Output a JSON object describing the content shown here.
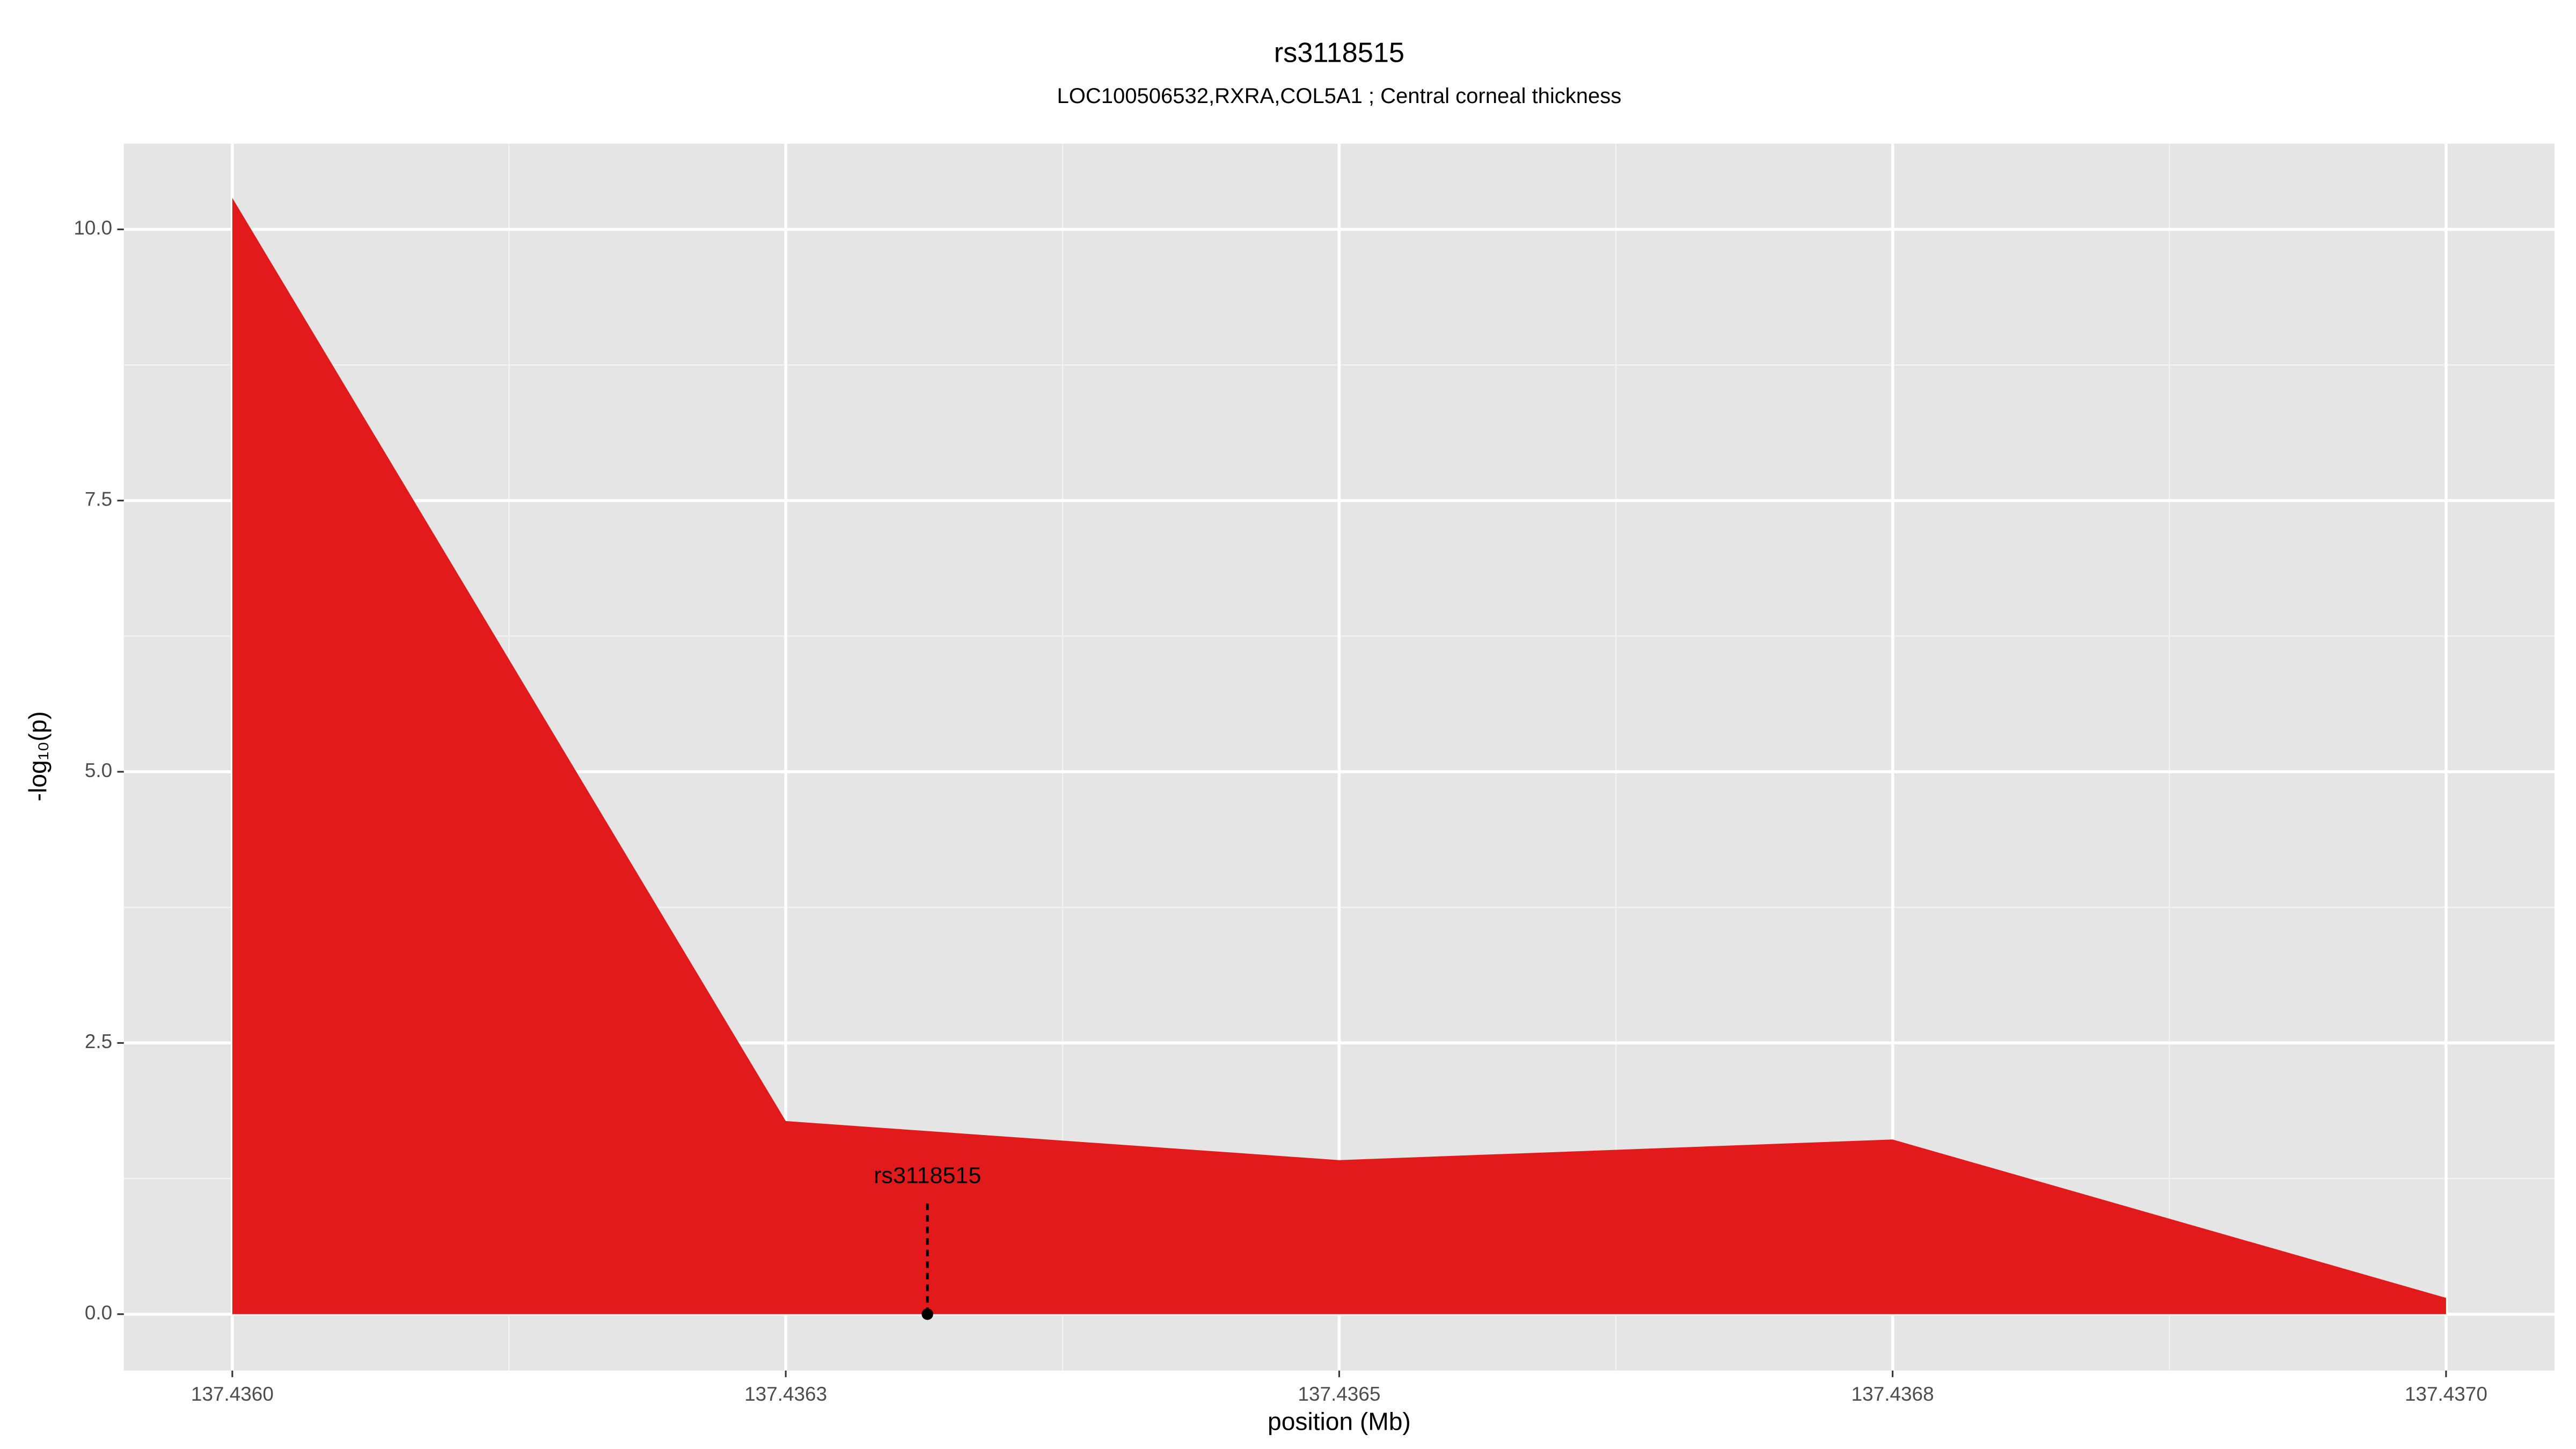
{
  "chart_data": {
    "type": "area",
    "title": "rs3118515",
    "subtitle": "LOC100506532,RXRA,COL5A1 ; Central corneal thickness",
    "xlabel": "position (Mb)",
    "ylabel": "-log₁₀(p)",
    "x": [
      137.436,
      137.43625,
      137.4365,
      137.43675,
      137.437
    ],
    "series": [
      {
        "values": [
          10.29,
          1.78,
          1.42,
          1.61,
          0.15
        ],
        "color": "#e31a1c"
      }
    ],
    "xlim": [
      137.435951,
      137.437049
    ],
    "ylim": [
      -0.52,
      10.79
    ],
    "xticks": [
      {
        "value": 137.436,
        "label": "137.4360"
      },
      {
        "value": 137.43625,
        "label": "137.4363"
      },
      {
        "value": 137.4365,
        "label": "137.4365"
      },
      {
        "value": 137.43675,
        "label": "137.4368"
      },
      {
        "value": 137.437,
        "label": "137.4370"
      }
    ],
    "yticks": [
      {
        "value": 0,
        "label": "0.0"
      },
      2.5,
      {
        "value": 5,
        "label": "5.0"
      },
      7.5,
      {
        "value": 10,
        "label": "10.0"
      }
    ],
    "grid": true,
    "annotations": [
      {
        "label": "rs3118515",
        "x": 137.436314,
        "y": 0
      }
    ]
  }
}
